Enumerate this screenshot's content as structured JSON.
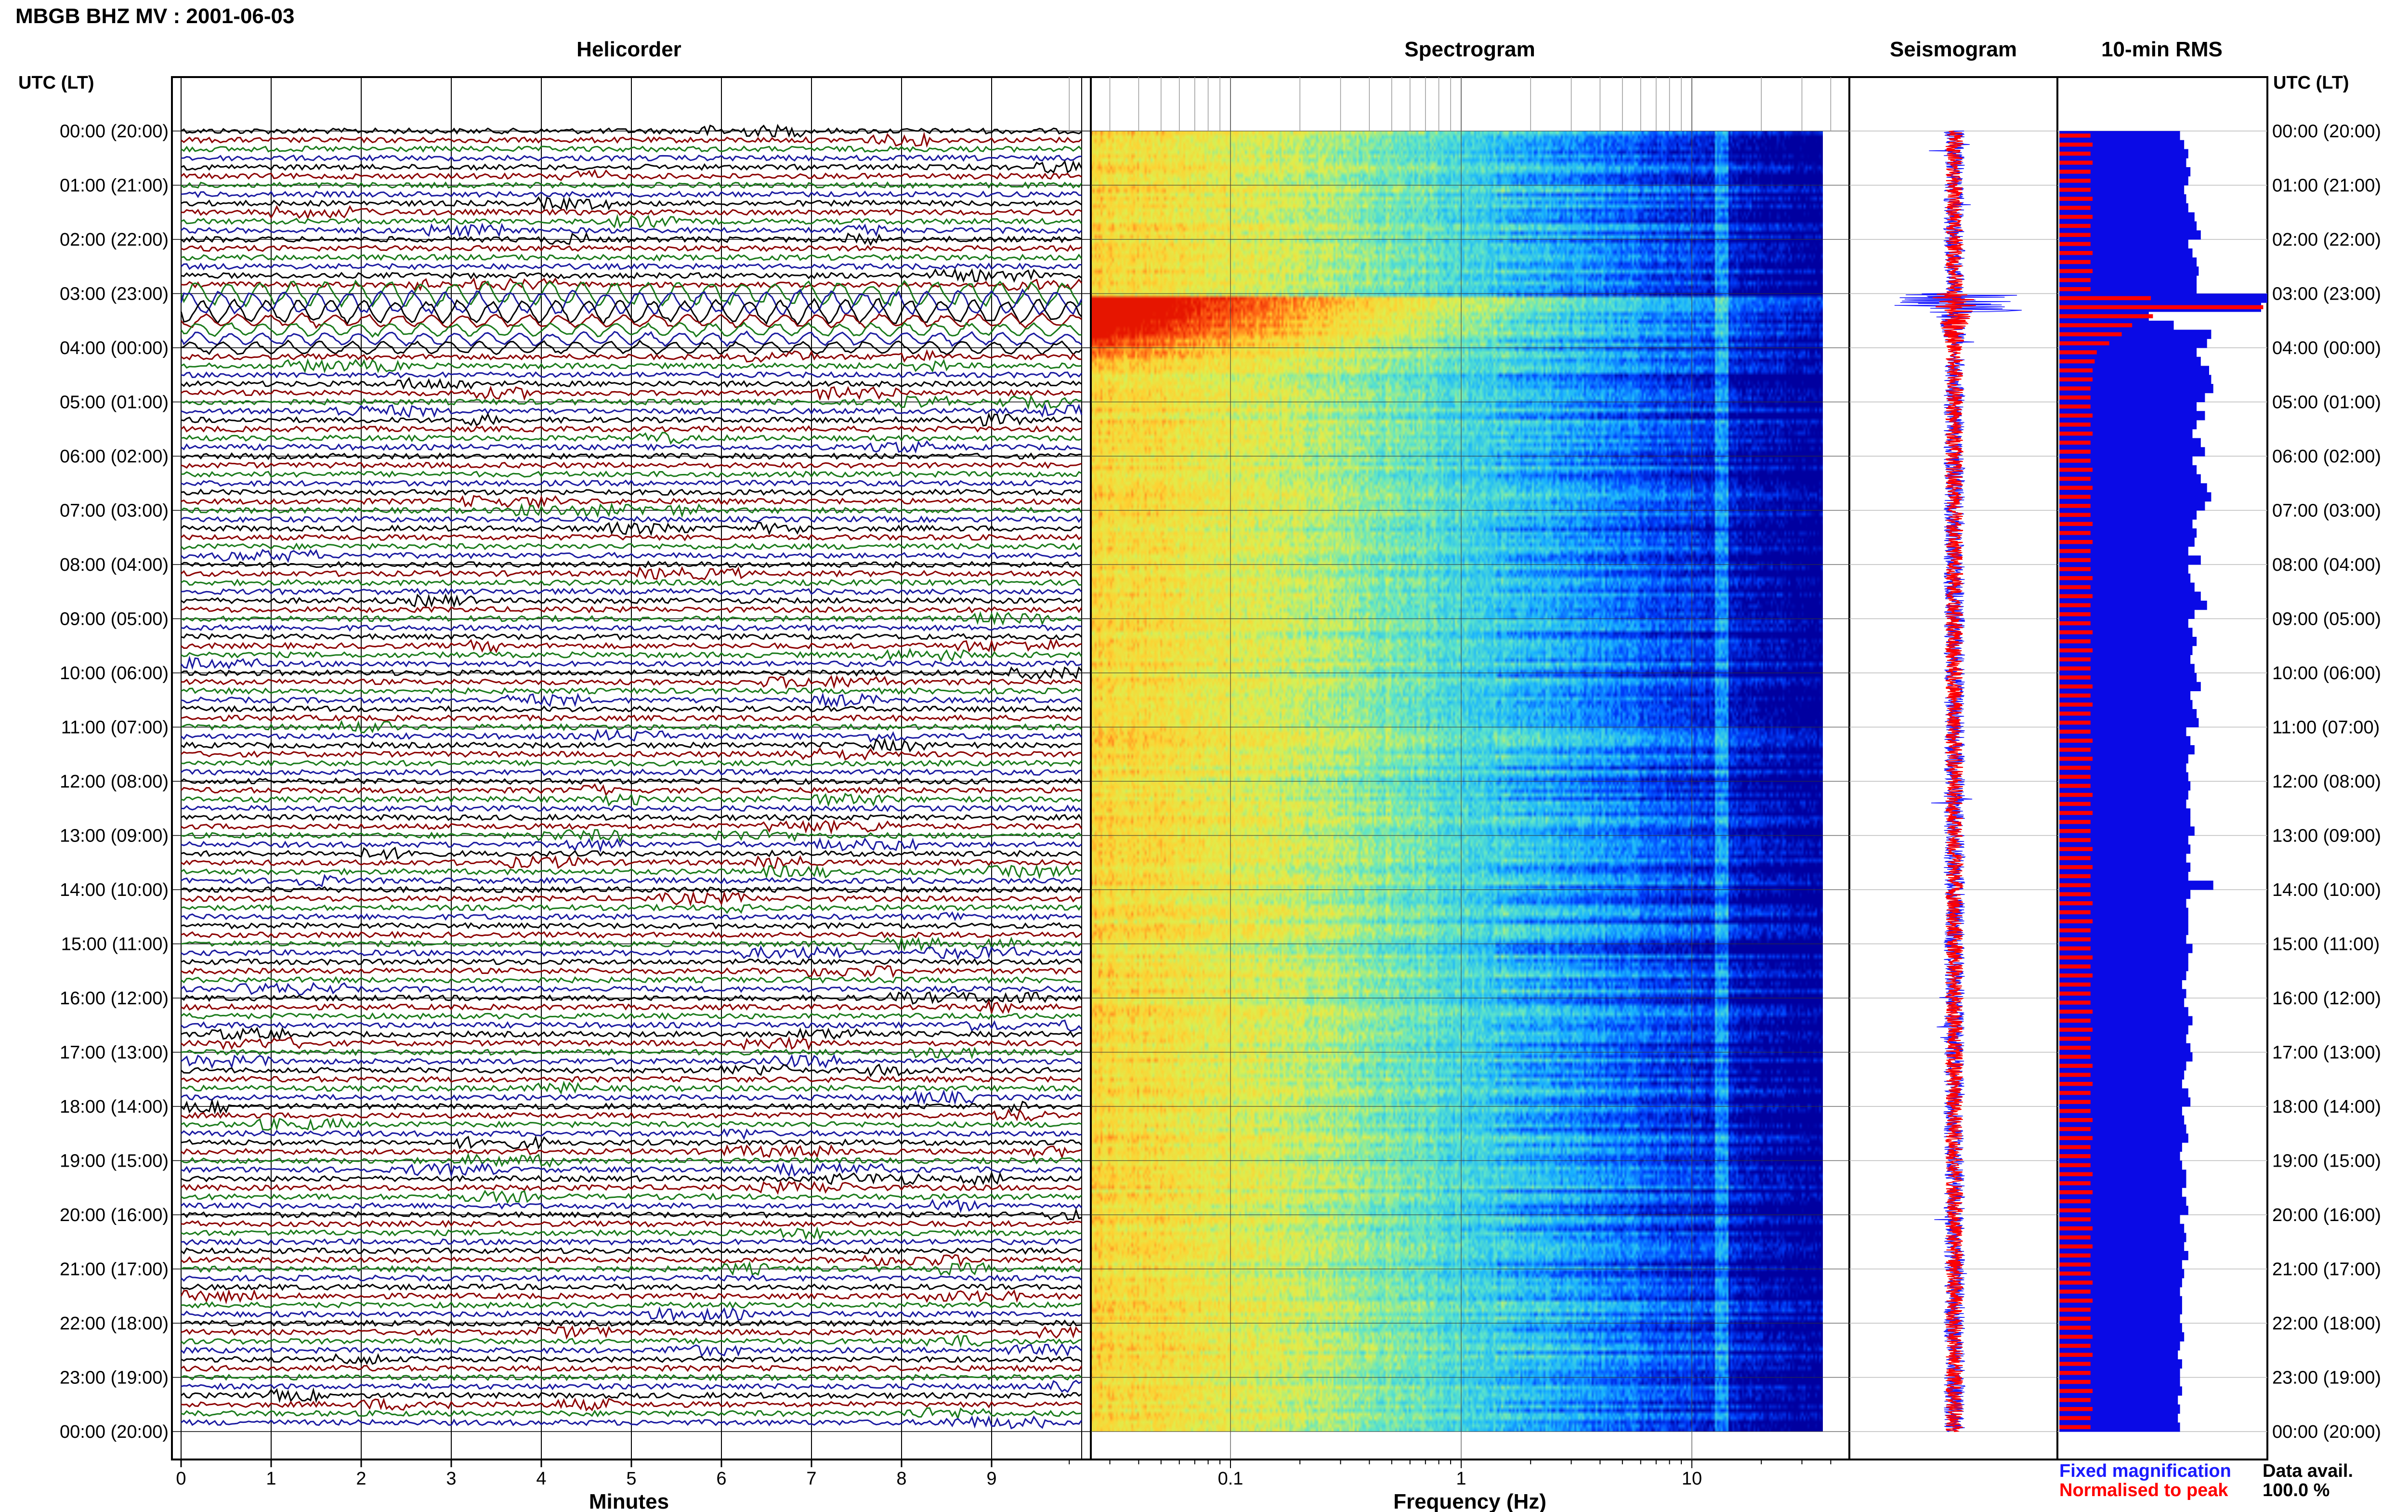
{
  "title": "MBGB BHZ MV : 2001-06-03",
  "panels": {
    "helicorder": "Helicorder",
    "spectrogram": "Spectrogram",
    "seismogram": "Seismogram",
    "rms": "10-min RMS"
  },
  "time_axis_header": "UTC (LT)",
  "time_labels": [
    "00:00 (20:00)",
    "01:00 (21:00)",
    "02:00 (22:00)",
    "03:00 (23:00)",
    "04:00 (00:00)",
    "05:00 (01:00)",
    "06:00 (02:00)",
    "07:00 (03:00)",
    "08:00 (04:00)",
    "09:00 (05:00)",
    "10:00 (06:00)",
    "11:00 (07:00)",
    "12:00 (08:00)",
    "13:00 (09:00)",
    "14:00 (10:00)",
    "15:00 (11:00)",
    "16:00 (12:00)",
    "17:00 (13:00)",
    "18:00 (14:00)",
    "19:00 (15:00)",
    "20:00 (16:00)",
    "21:00 (17:00)",
    "22:00 (18:00)",
    "23:00 (19:00)",
    "00:00 (20:00)"
  ],
  "legend": {
    "fixed": "Fixed magnification",
    "normalised": "Normalised to peak",
    "fixed_color": "#1a1aff",
    "normalised_color": "#ff0000"
  },
  "data_avail": {
    "label": "Data avail.",
    "value": "100.0 %"
  },
  "chart_data": [
    {
      "type": "line",
      "name": "helicorder",
      "title": "Helicorder",
      "xlabel": "Minutes",
      "x_ticks": [
        0,
        1,
        2,
        3,
        4,
        5,
        6,
        7,
        8,
        9
      ],
      "xlim": [
        0,
        10
      ],
      "traces_per_hour": 6,
      "trace_colors": [
        "#000000",
        "#8b0000",
        "#1a7a1a",
        "#1a1aa0"
      ],
      "event_window_utc": [
        "03:00",
        "04:00"
      ]
    },
    {
      "type": "heatmap",
      "name": "spectrogram",
      "title": "Spectrogram",
      "xlabel": "Frequency (Hz)",
      "x_scale": "log",
      "x_ticks": [
        0.1,
        1,
        10
      ],
      "x_tick_labels": [
        "0.1",
        "1",
        "10"
      ],
      "colormap": [
        "#0000a0",
        "#0040ff",
        "#19b4ff",
        "#5fe6c8",
        "#dcf050",
        "#ffd232",
        "#ff6414",
        "#e61400"
      ]
    },
    {
      "type": "line",
      "name": "seismogram",
      "title": "Seismogram",
      "series": [
        {
          "name": "Fixed magnification",
          "color": "#1a1aff"
        },
        {
          "name": "Normalised to peak",
          "color": "#ff0000"
        }
      ]
    },
    {
      "type": "bar",
      "name": "rms",
      "title": "10-min RMS",
      "orientation": "horizontal",
      "interval_minutes": 10,
      "series": [
        {
          "name": "Fixed magnification",
          "color": "#0a0ae6",
          "values": [
            0.58,
            0.6,
            0.62,
            0.61,
            0.63,
            0.62,
            0.6,
            0.61,
            0.62,
            0.65,
            0.66,
            0.68,
            0.62,
            0.64,
            0.66,
            0.67,
            0.66,
            0.66,
            1.0,
            0.97,
            0.43,
            0.55,
            0.73,
            0.71,
            0.66,
            0.68,
            0.72,
            0.73,
            0.74,
            0.7,
            0.66,
            0.7,
            0.66,
            0.64,
            0.68,
            0.7,
            0.64,
            0.66,
            0.68,
            0.71,
            0.73,
            0.7,
            0.66,
            0.64,
            0.66,
            0.65,
            0.62,
            0.68,
            0.62,
            0.63,
            0.65,
            0.68,
            0.71,
            0.65,
            0.62,
            0.64,
            0.66,
            0.64,
            0.63,
            0.65,
            0.66,
            0.68,
            0.63,
            0.64,
            0.66,
            0.67,
            0.61,
            0.63,
            0.65,
            0.62,
            0.61,
            0.62,
            0.63,
            0.62,
            0.61,
            0.63,
            0.63,
            0.65,
            0.62,
            0.63,
            0.61,
            0.63,
            0.62,
            0.74,
            0.63,
            0.61,
            0.62,
            0.62,
            0.62,
            0.61,
            0.64,
            0.62,
            0.62,
            0.61,
            0.59,
            0.61,
            0.6,
            0.62,
            0.64,
            0.62,
            0.61,
            0.63,
            0.64,
            0.61,
            0.6,
            0.59,
            0.62,
            0.63,
            0.59,
            0.6,
            0.61,
            0.62,
            0.59,
            0.58,
            0.59,
            0.61,
            0.61,
            0.59,
            0.61,
            0.62,
            0.58,
            0.6,
            0.61,
            0.6,
            0.62,
            0.59,
            0.6,
            0.59,
            0.58,
            0.59,
            0.59,
            0.58,
            0.59,
            0.6,
            0.58,
            0.57,
            0.59,
            0.58,
            0.58,
            0.59,
            0.57,
            0.58,
            0.57,
            0.58
          ]
        },
        {
          "name": "Normalised to peak",
          "color": "#ff0000",
          "values": [
            0.15,
            0.16,
            0.15,
            0.16,
            0.15,
            0.15,
            0.15,
            0.16,
            0.15,
            0.16,
            0.15,
            0.15,
            0.15,
            0.16,
            0.15,
            0.16,
            0.15,
            0.15,
            0.44,
            0.98,
            0.45,
            0.35,
            0.3,
            0.24,
            0.18,
            0.17,
            0.16,
            0.16,
            0.15,
            0.15,
            0.15,
            0.16,
            0.15,
            0.16,
            0.15,
            0.15,
            0.15,
            0.16,
            0.15,
            0.16,
            0.15,
            0.15,
            0.15,
            0.16,
            0.15,
            0.16,
            0.15,
            0.15,
            0.15,
            0.16,
            0.15,
            0.16,
            0.15,
            0.15,
            0.15,
            0.16,
            0.15,
            0.16,
            0.15,
            0.15,
            0.15,
            0.16,
            0.15,
            0.16,
            0.15,
            0.15,
            0.15,
            0.16,
            0.15,
            0.16,
            0.15,
            0.15,
            0.15,
            0.16,
            0.15,
            0.16,
            0.15,
            0.15,
            0.15,
            0.16,
            0.15,
            0.16,
            0.15,
            0.15,
            0.15,
            0.16,
            0.15,
            0.16,
            0.15,
            0.15,
            0.15,
            0.16,
            0.15,
            0.16,
            0.15,
            0.15,
            0.15,
            0.16,
            0.15,
            0.16,
            0.15,
            0.15,
            0.15,
            0.16,
            0.15,
            0.16,
            0.15,
            0.15,
            0.15,
            0.16,
            0.15,
            0.16,
            0.15,
            0.15,
            0.15,
            0.16,
            0.15,
            0.16,
            0.15,
            0.15,
            0.15,
            0.16,
            0.15,
            0.16,
            0.15,
            0.15,
            0.15,
            0.16,
            0.15,
            0.16,
            0.15,
            0.15,
            0.15,
            0.16,
            0.15,
            0.16,
            0.15,
            0.15,
            0.15,
            0.16,
            0.15,
            0.16,
            0.15,
            0.15
          ]
        }
      ]
    }
  ]
}
